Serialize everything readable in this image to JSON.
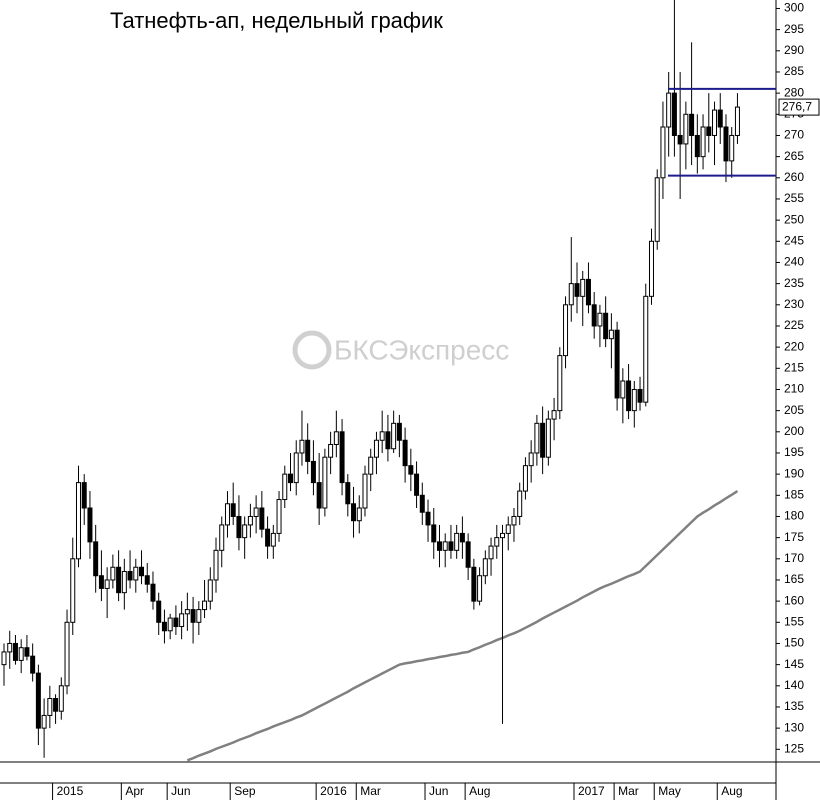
{
  "chart_data": {
    "type": "candlestick",
    "title": "Татнефть-ап, недельный график",
    "watermark": "БКСЭкспресс",
    "categories": [
      null,
      null,
      null,
      null,
      null,
      null,
      null,
      null,
      null,
      "2015",
      null,
      null,
      null,
      null,
      null,
      null,
      null,
      null,
      null,
      null,
      null,
      "Apr",
      null,
      null,
      null,
      null,
      null,
      null,
      null,
      "Jun",
      null,
      null,
      null,
      null,
      null,
      null,
      null,
      null,
      null,
      null,
      "Sep",
      null,
      null,
      null,
      null,
      null,
      null,
      null,
      null,
      null,
      null,
      null,
      null,
      null,
      null,
      "2016",
      null,
      null,
      null,
      null,
      null,
      null,
      "Mar",
      null,
      null,
      null,
      null,
      null,
      null,
      null,
      null,
      null,
      null,
      null,
      "Jun",
      null,
      null,
      null,
      null,
      null,
      null,
      "Aug",
      null,
      null,
      null,
      null,
      null,
      null,
      null,
      null,
      null,
      null,
      null,
      null,
      null,
      null,
      null,
      null,
      null,
      null,
      "2017",
      null,
      null,
      null,
      null,
      null,
      null,
      "Mar",
      null,
      null,
      null,
      null,
      null,
      null,
      "May",
      null,
      null,
      null,
      null,
      null,
      null,
      null,
      null,
      null,
      null,
      "Aug",
      null,
      null,
      null
    ],
    "open": [
      145,
      148,
      150,
      146,
      149,
      147,
      143,
      130,
      133,
      137,
      134,
      140,
      155,
      170,
      188,
      182,
      174,
      166,
      163,
      165,
      168,
      162,
      167,
      165,
      168,
      166,
      164,
      160,
      155,
      153,
      156,
      154,
      157,
      158,
      155,
      158,
      160,
      165,
      172,
      178,
      183,
      180,
      175,
      178,
      180,
      182,
      177,
      173,
      176,
      184,
      190,
      188,
      195,
      198,
      193,
      188,
      182,
      194,
      197,
      200,
      188,
      183,
      179,
      182,
      190,
      194,
      198,
      200,
      196,
      202,
      198,
      192,
      190,
      185,
      181,
      178,
      174,
      172,
      174,
      172,
      176,
      174,
      168,
      160,
      166,
      170,
      173,
      175,
      176,
      178,
      180,
      186,
      192,
      195,
      202,
      194,
      203,
      205,
      218,
      230,
      235,
      232,
      236,
      230,
      225,
      228,
      222,
      224,
      208,
      212,
      205,
      210,
      207,
      232,
      245,
      260,
      272,
      280,
      270,
      268,
      275,
      270,
      265,
      272,
      270,
      276,
      272,
      264,
      270
    ],
    "high": [
      150,
      153,
      152,
      151,
      152,
      150,
      145,
      137,
      140,
      138,
      142,
      158,
      175,
      192,
      190,
      186,
      178,
      172,
      168,
      171,
      172,
      170,
      172,
      170,
      172,
      169,
      167,
      162,
      158,
      157,
      159,
      160,
      162,
      161,
      160,
      165,
      168,
      175,
      180,
      186,
      188,
      185,
      180,
      183,
      185,
      186,
      180,
      178,
      186,
      192,
      195,
      198,
      205,
      202,
      198,
      195,
      196,
      200,
      205,
      203,
      190,
      187,
      185,
      192,
      196,
      200,
      205,
      204,
      205,
      204,
      201,
      196,
      193,
      188,
      184,
      182,
      178,
      176,
      178,
      178,
      180,
      176,
      170,
      168,
      172,
      175,
      178,
      178,
      180,
      182,
      188,
      194,
      198,
      204,
      206,
      205,
      208,
      220,
      232,
      246,
      240,
      238,
      240,
      233,
      230,
      232,
      228,
      226,
      215,
      216,
      212,
      213,
      235,
      248,
      262,
      278,
      285,
      302,
      285,
      278,
      292,
      275,
      275,
      280,
      278,
      280,
      275,
      272,
      280
    ],
    "low": [
      140,
      144,
      145,
      143,
      146,
      141,
      126,
      123,
      130,
      131,
      132,
      138,
      152,
      168,
      178,
      170,
      162,
      160,
      156,
      163,
      160,
      158,
      163,
      162,
      164,
      162,
      158,
      152,
      150,
      151,
      152,
      151,
      153,
      150,
      152,
      156,
      158,
      162,
      168,
      175,
      178,
      172,
      170,
      175,
      176,
      175,
      170,
      170,
      174,
      182,
      186,
      185,
      192,
      190,
      185,
      178,
      180,
      190,
      194,
      185,
      180,
      175,
      176,
      180,
      186,
      190,
      195,
      193,
      195,
      194,
      188,
      186,
      182,
      178,
      174,
      170,
      168,
      168,
      170,
      170,
      170,
      165,
      158,
      159,
      164,
      166,
      170,
      131,
      172,
      174,
      178,
      184,
      188,
      192,
      190,
      192,
      198,
      203,
      215,
      226,
      228,
      225,
      228,
      222,
      220,
      220,
      215,
      205,
      202,
      203,
      201,
      205,
      206,
      230,
      243,
      255,
      265,
      265,
      255,
      262,
      263,
      261,
      262,
      266,
      263,
      268,
      259,
      260,
      268
    ],
    "close": [
      148,
      150,
      146,
      149,
      147,
      143,
      130,
      133,
      137,
      134,
      140,
      155,
      170,
      188,
      182,
      174,
      166,
      163,
      165,
      168,
      162,
      167,
      165,
      168,
      166,
      164,
      160,
      155,
      153,
      156,
      154,
      157,
      158,
      155,
      158,
      160,
      165,
      172,
      178,
      183,
      180,
      175,
      178,
      180,
      182,
      177,
      173,
      176,
      184,
      190,
      188,
      195,
      198,
      193,
      188,
      182,
      194,
      197,
      200,
      188,
      183,
      179,
      182,
      190,
      194,
      198,
      200,
      196,
      202,
      198,
      192,
      190,
      185,
      181,
      178,
      174,
      172,
      174,
      172,
      176,
      174,
      168,
      160,
      166,
      170,
      173,
      175,
      176,
      178,
      180,
      186,
      192,
      195,
      202,
      194,
      203,
      205,
      218,
      230,
      235,
      232,
      236,
      230,
      225,
      228,
      222,
      224,
      208,
      212,
      205,
      210,
      207,
      232,
      245,
      260,
      272,
      280,
      270,
      268,
      275,
      270,
      265,
      272,
      270,
      276,
      272,
      264,
      270,
      276.7
    ],
    "moving_average": {
      "color": "#808080",
      "values": [
        null,
        null,
        null,
        null,
        null,
        null,
        null,
        null,
        null,
        null,
        null,
        null,
        null,
        null,
        null,
        null,
        null,
        null,
        null,
        null,
        null,
        null,
        null,
        null,
        null,
        null,
        null,
        null,
        null,
        null,
        null,
        null,
        122.4,
        122.9,
        123.5,
        124,
        124.5,
        125.1,
        125.6,
        126.1,
        126.6,
        127.2,
        127.7,
        128.2,
        128.8,
        129.3,
        129.8,
        130.4,
        130.9,
        131.4,
        131.9,
        132.5,
        133,
        133.7,
        134.4,
        135.1,
        135.8,
        136.5,
        137.2,
        137.9,
        138.6,
        139.4,
        140.1,
        140.8,
        141.5,
        142.2,
        142.9,
        143.6,
        144.3,
        145,
        145.3,
        145.5,
        145.8,
        146,
        146.3,
        146.5,
        146.8,
        147,
        147.3,
        147.5,
        147.8,
        148,
        148.6,
        149.1,
        149.7,
        150.2,
        150.8,
        151.3,
        151.9,
        152.4,
        153,
        153.7,
        154.4,
        155.1,
        155.9,
        156.6,
        157.3,
        158,
        158.7,
        159.4,
        160.1,
        160.9,
        161.6,
        162.3,
        163,
        163.6,
        164.1,
        164.7,
        165.3,
        165.9,
        166.4,
        167,
        168.3,
        169.6,
        170.9,
        172.2,
        173.5,
        174.8,
        176.1,
        177.4,
        178.7,
        180,
        180.9,
        181.7,
        182.6,
        183.4,
        184.3,
        185.1,
        186
      ]
    },
    "levels": {
      "color": "#1c1c8c",
      "values": [
        281,
        260.5
      ]
    },
    "last_price": {
      "value": 276.7,
      "label": "276,7"
    },
    "up_color": "#ffffff",
    "down_color": "#000000",
    "ylim": [
      122,
      302
    ],
    "yticks": [
      125,
      130,
      135,
      140,
      145,
      150,
      155,
      160,
      165,
      170,
      175,
      180,
      185,
      190,
      195,
      200,
      205,
      210,
      215,
      220,
      225,
      230,
      235,
      240,
      245,
      250,
      255,
      260,
      265,
      270,
      275,
      280,
      285,
      290,
      295,
      300
    ]
  }
}
